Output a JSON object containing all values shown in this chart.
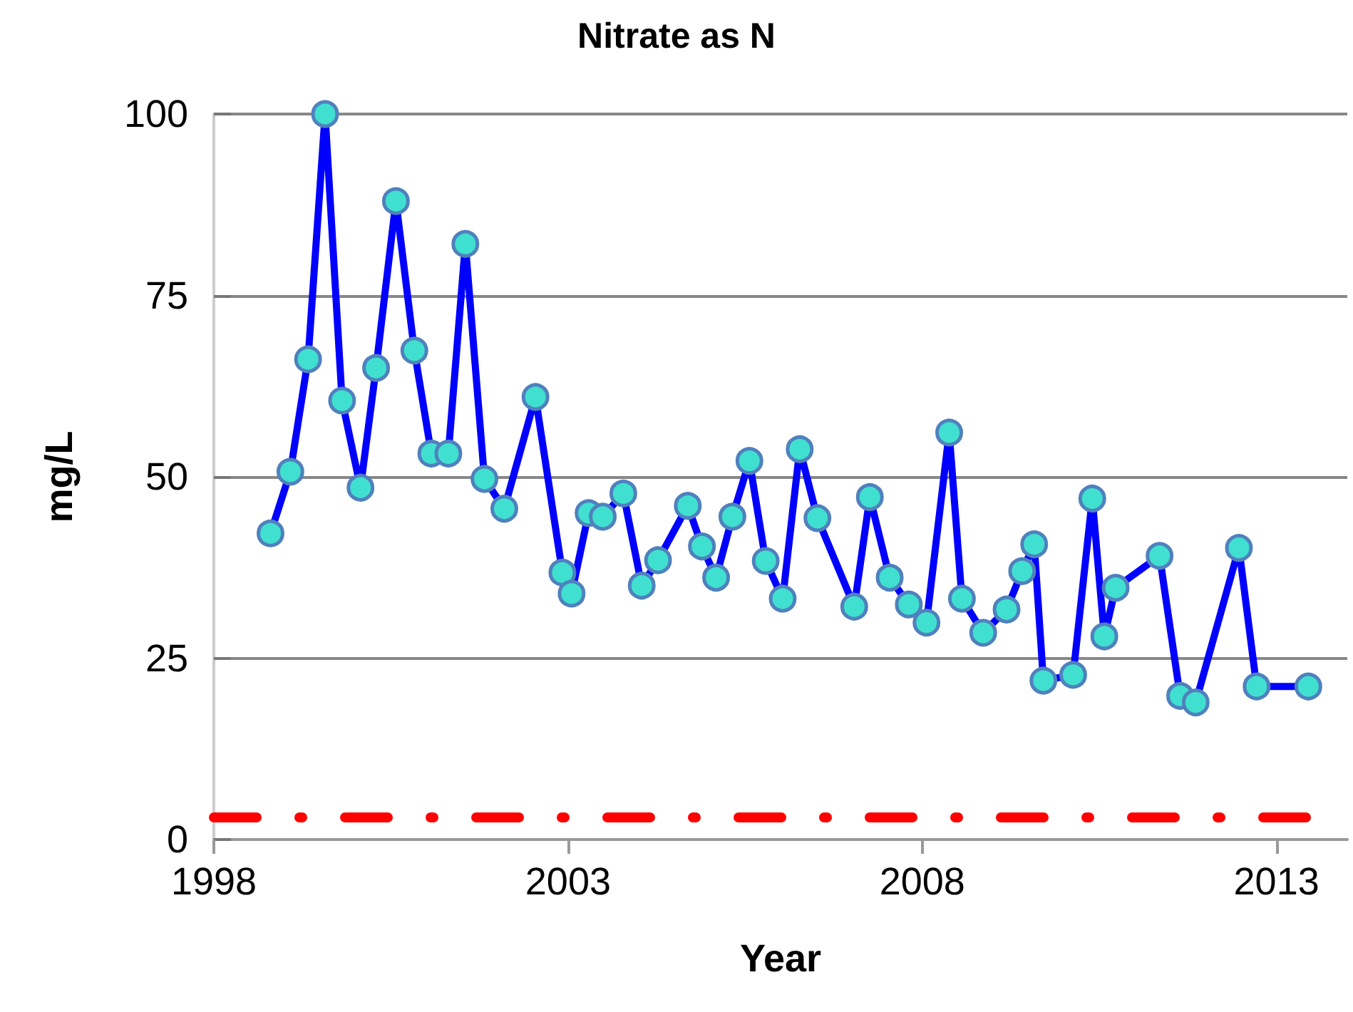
{
  "chart_data": {
    "type": "line",
    "title": "Nitrate as N",
    "xlabel": "Year",
    "ylabel": "mg/L",
    "x": [
      1998.8,
      1999.08,
      1999.33,
      1999.57,
      1999.81,
      2000.07,
      2000.29,
      2000.57,
      2000.83,
      2001.07,
      2001.31,
      2001.55,
      2001.82,
      2002.1,
      2002.54,
      2002.92,
      2003.05,
      2003.29,
      2003.49,
      2003.78,
      2004.04,
      2004.27,
      2004.69,
      2004.89,
      2005.09,
      2005.32,
      2005.56,
      2005.79,
      2006.03,
      2006.27,
      2006.52,
      2007.04,
      2007.26,
      2007.54,
      2007.81,
      2008.06,
      2008.38,
      2008.56,
      2008.86,
      2009.19,
      2009.41,
      2009.58,
      2009.71,
      2010.13,
      2010.4,
      2010.57,
      2010.73,
      2011.35,
      2011.64,
      2011.86,
      2012.47,
      2012.72,
      2013.45
    ],
    "series": [
      {
        "color": "#0000ff",
        "values": [
          42.2,
          50.7,
          66.2,
          100,
          60.5,
          48.5,
          65.0,
          88.0,
          67.4,
          53.2,
          53.2,
          82.1,
          49.7,
          45.6,
          61,
          36.8,
          33.9,
          45.0,
          44.5,
          47.7,
          35,
          38.5,
          46.0,
          40.4,
          36.1,
          44.5,
          52.2,
          38.4,
          33.2,
          53.8,
          44.3,
          32.1,
          47.2,
          36.1,
          32.4,
          29.9,
          56.1,
          33.2,
          28.5,
          31.7,
          37.0,
          40.7,
          21.9,
          22.7,
          47.0,
          28.0,
          34.7,
          39.1,
          19.8,
          18.9,
          40.2,
          21.1,
          21.1
        ]
      }
    ],
    "xlim": [
      1998,
      2014
    ],
    "xticks": [
      1998,
      2003,
      2008,
      2013
    ],
    "ylim": [
      0,
      100
    ],
    "yticks": [
      0,
      25,
      50,
      75,
      100
    ],
    "ref_lines": [
      {
        "axis": "y",
        "value": 3,
        "color": "#ff0000",
        "line_style": "dashed"
      }
    ],
    "grid": "y",
    "marker": "circle",
    "line_style": "solid"
  }
}
